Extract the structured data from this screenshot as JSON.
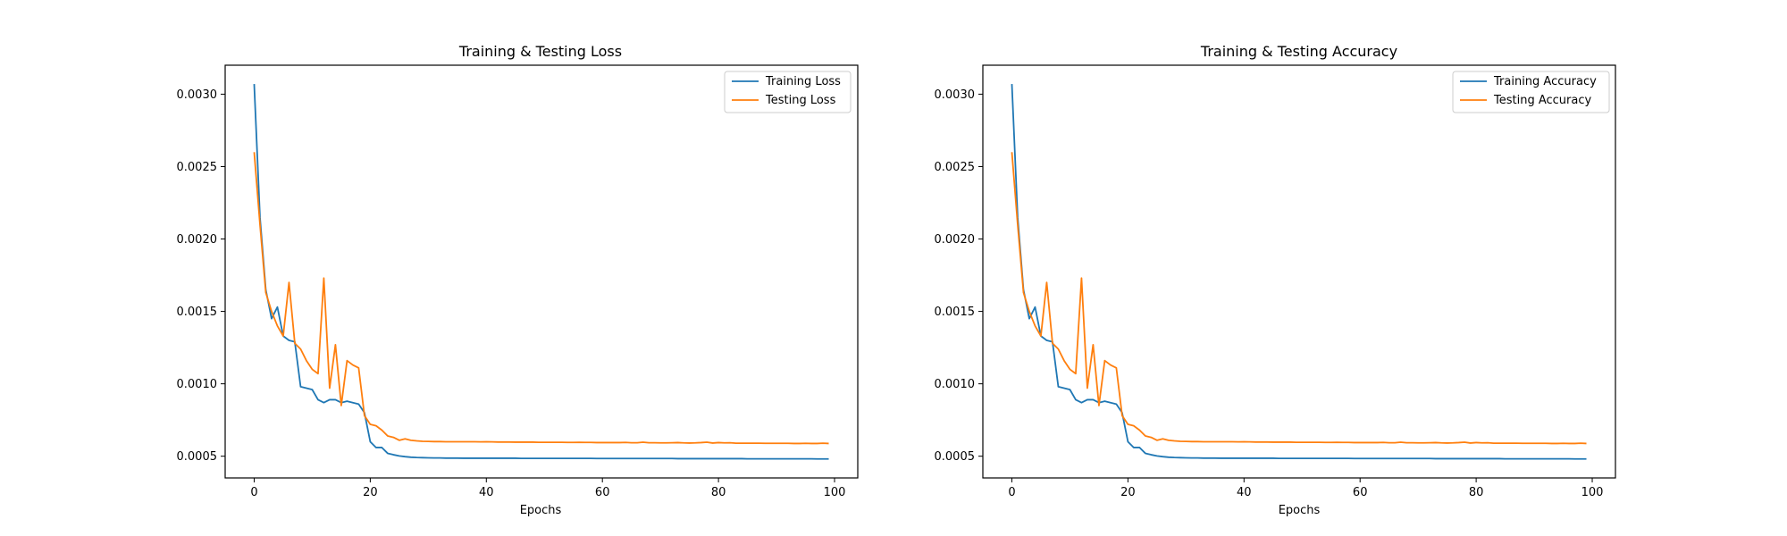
{
  "chart_data": [
    {
      "type": "line",
      "title": "Training & Testing Loss",
      "xlabel": "Epochs",
      "ylabel": "",
      "xlim": [
        -5,
        104
      ],
      "ylim": [
        0.00035,
        0.0032
      ],
      "xticks": [
        0,
        20,
        40,
        60,
        80,
        100
      ],
      "yticks": [
        0.0005,
        0.001,
        0.0015,
        0.002,
        0.0025,
        0.003
      ],
      "xtick_labels": [
        "0",
        "20",
        "40",
        "60",
        "80",
        "100"
      ],
      "ytick_labels": [
        "0.0005",
        "0.0010",
        "0.0015",
        "0.0020",
        "0.0025",
        "0.0030"
      ],
      "legend": "top-right",
      "series": [
        {
          "name": "Training Loss",
          "color": "#1f77b4",
          "values": [
            0.00307,
            0.00215,
            0.00165,
            0.00145,
            0.00153,
            0.00133,
            0.0013,
            0.00129,
            0.00098,
            0.00097,
            0.00096,
            0.00089,
            0.00087,
            0.00089,
            0.00089,
            0.00087,
            0.00088,
            0.00087,
            0.00086,
            0.0008,
            0.0006,
            0.00056,
            0.00056,
            0.00052,
            0.00051,
            0.000502,
            0.000497,
            0.000493,
            0.000491,
            0.00049,
            0.000489,
            0.000488,
            0.000488,
            0.000487,
            0.000487,
            0.000487,
            0.000486,
            0.000486,
            0.000486,
            0.000486,
            0.000486,
            0.000486,
            0.000486,
            0.000486,
            0.000486,
            0.000486,
            0.000485,
            0.000485,
            0.000485,
            0.000485,
            0.000485,
            0.000485,
            0.000485,
            0.000485,
            0.000485,
            0.000485,
            0.000485,
            0.000485,
            0.000485,
            0.000484,
            0.000484,
            0.000484,
            0.000484,
            0.000484,
            0.000484,
            0.000484,
            0.000484,
            0.000484,
            0.000484,
            0.000484,
            0.000484,
            0.000484,
            0.000484,
            0.000483,
            0.000483,
            0.000483,
            0.000483,
            0.000483,
            0.000483,
            0.000483,
            0.000483,
            0.000483,
            0.000483,
            0.000483,
            0.000483,
            0.000482,
            0.000482,
            0.000482,
            0.000482,
            0.000482,
            0.000482,
            0.000482,
            0.000482,
            0.000482,
            0.000482,
            0.000482,
            0.000482,
            0.000481,
            0.000481,
            0.000481
          ]
        },
        {
          "name": "Testing Loss",
          "color": "#ff7f0e",
          "values": [
            0.0026,
            0.0021,
            0.00163,
            0.0015,
            0.0014,
            0.00133,
            0.0017,
            0.00128,
            0.00124,
            0.00116,
            0.0011,
            0.00107,
            0.00173,
            0.00097,
            0.00127,
            0.00085,
            0.00116,
            0.00113,
            0.00111,
            0.00078,
            0.00072,
            0.00071,
            0.00068,
            0.00064,
            0.00063,
            0.00061,
            0.00062,
            0.00061,
            0.000606,
            0.000603,
            0.000602,
            0.000601,
            0.000601,
            0.0006,
            0.0006,
            0.0006,
            0.0006,
            0.0006,
            0.0006,
            0.000599,
            0.0006,
            0.000599,
            0.000598,
            0.000598,
            0.000598,
            0.000597,
            0.000597,
            0.000597,
            0.000597,
            0.000596,
            0.000596,
            0.000596,
            0.000596,
            0.000596,
            0.000595,
            0.000595,
            0.000596,
            0.000595,
            0.000595,
            0.000594,
            0.000594,
            0.000594,
            0.000594,
            0.000594,
            0.000595,
            0.000593,
            0.000593,
            0.000597,
            0.000593,
            0.000593,
            0.000592,
            0.000592,
            0.000593,
            0.000594,
            0.000592,
            0.000591,
            0.000592,
            0.000594,
            0.000597,
            0.000591,
            0.000594,
            0.000592,
            0.000593,
            0.00059,
            0.00059,
            0.00059,
            0.00059,
            0.00059,
            0.000589,
            0.000589,
            0.000589,
            0.000589,
            0.000589,
            0.000588,
            0.000588,
            0.000589,
            0.000588,
            0.000588,
            0.00059,
            0.000588
          ]
        }
      ]
    },
    {
      "type": "line",
      "title": "Training & Testing Accuracy",
      "xlabel": "Epochs",
      "ylabel": "",
      "xlim": [
        -5,
        104
      ],
      "ylim": [
        0.00035,
        0.0032
      ],
      "xticks": [
        0,
        20,
        40,
        60,
        80,
        100
      ],
      "yticks": [
        0.0005,
        0.001,
        0.0015,
        0.002,
        0.0025,
        0.003
      ],
      "xtick_labels": [
        "0",
        "20",
        "40",
        "60",
        "80",
        "100"
      ],
      "ytick_labels": [
        "0.0005",
        "0.0010",
        "0.0015",
        "0.0020",
        "0.0025",
        "0.0030"
      ],
      "legend": "top-right",
      "series": [
        {
          "name": "Training Accuracy",
          "color": "#1f77b4",
          "values": [
            0.00307,
            0.00215,
            0.00165,
            0.00145,
            0.00153,
            0.00133,
            0.0013,
            0.00129,
            0.00098,
            0.00097,
            0.00096,
            0.00089,
            0.00087,
            0.00089,
            0.00089,
            0.00087,
            0.00088,
            0.00087,
            0.00086,
            0.0008,
            0.0006,
            0.00056,
            0.00056,
            0.00052,
            0.00051,
            0.000502,
            0.000497,
            0.000493,
            0.000491,
            0.00049,
            0.000489,
            0.000488,
            0.000488,
            0.000487,
            0.000487,
            0.000487,
            0.000486,
            0.000486,
            0.000486,
            0.000486,
            0.000486,
            0.000486,
            0.000486,
            0.000486,
            0.000486,
            0.000486,
            0.000485,
            0.000485,
            0.000485,
            0.000485,
            0.000485,
            0.000485,
            0.000485,
            0.000485,
            0.000485,
            0.000485,
            0.000485,
            0.000485,
            0.000485,
            0.000484,
            0.000484,
            0.000484,
            0.000484,
            0.000484,
            0.000484,
            0.000484,
            0.000484,
            0.000484,
            0.000484,
            0.000484,
            0.000484,
            0.000484,
            0.000484,
            0.000483,
            0.000483,
            0.000483,
            0.000483,
            0.000483,
            0.000483,
            0.000483,
            0.000483,
            0.000483,
            0.000483,
            0.000483,
            0.000483,
            0.000482,
            0.000482,
            0.000482,
            0.000482,
            0.000482,
            0.000482,
            0.000482,
            0.000482,
            0.000482,
            0.000482,
            0.000482,
            0.000482,
            0.000481,
            0.000481,
            0.000481
          ]
        },
        {
          "name": "Testing Accuracy",
          "color": "#ff7f0e",
          "values": [
            0.0026,
            0.0021,
            0.00163,
            0.0015,
            0.0014,
            0.00133,
            0.0017,
            0.00128,
            0.00124,
            0.00116,
            0.0011,
            0.00107,
            0.00173,
            0.00097,
            0.00127,
            0.00085,
            0.00116,
            0.00113,
            0.00111,
            0.00078,
            0.00072,
            0.00071,
            0.00068,
            0.00064,
            0.00063,
            0.00061,
            0.00062,
            0.00061,
            0.000606,
            0.000603,
            0.000602,
            0.000601,
            0.000601,
            0.0006,
            0.0006,
            0.0006,
            0.0006,
            0.0006,
            0.0006,
            0.000599,
            0.0006,
            0.000599,
            0.000598,
            0.000598,
            0.000598,
            0.000597,
            0.000597,
            0.000597,
            0.000597,
            0.000596,
            0.000596,
            0.000596,
            0.000596,
            0.000596,
            0.000595,
            0.000595,
            0.000596,
            0.000595,
            0.000595,
            0.000594,
            0.000594,
            0.000594,
            0.000594,
            0.000594,
            0.000595,
            0.000593,
            0.000593,
            0.000597,
            0.000593,
            0.000593,
            0.000592,
            0.000592,
            0.000593,
            0.000594,
            0.000592,
            0.000591,
            0.000592,
            0.000594,
            0.000597,
            0.000591,
            0.000594,
            0.000592,
            0.000593,
            0.00059,
            0.00059,
            0.00059,
            0.00059,
            0.00059,
            0.000589,
            0.000589,
            0.000589,
            0.000589,
            0.000589,
            0.000588,
            0.000588,
            0.000589,
            0.000588,
            0.000588,
            0.00059,
            0.000588
          ]
        }
      ]
    }
  ]
}
